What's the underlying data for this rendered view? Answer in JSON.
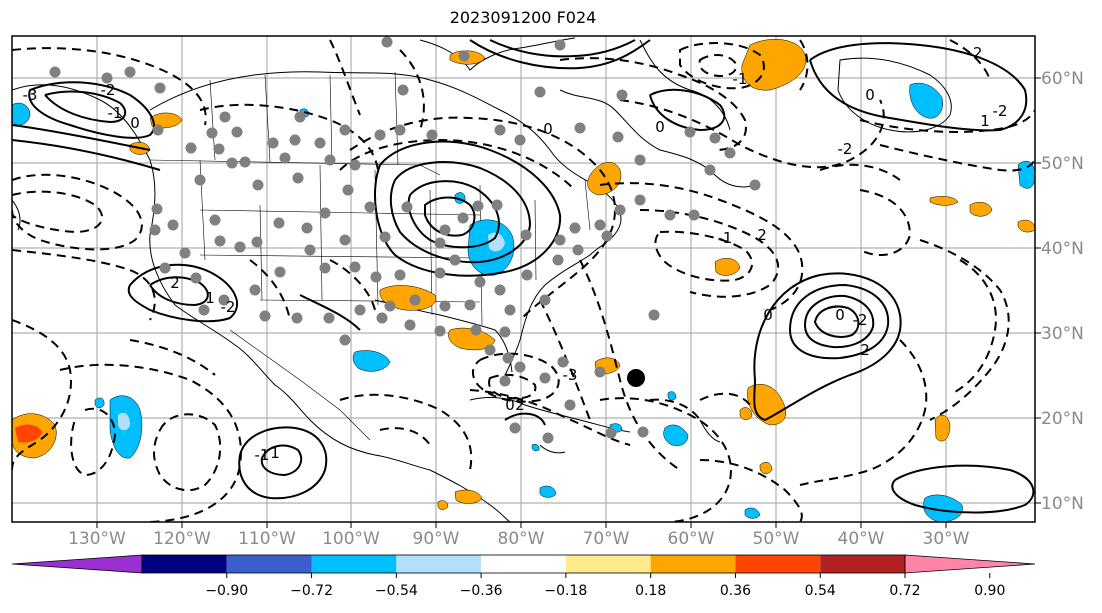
{
  "title": "2023091200 F024",
  "lon_labels": [
    "130°W",
    "120°W",
    "110°W",
    "100°W",
    "90°W",
    "80°W",
    "70°W",
    "60°W",
    "50°W",
    "40°W",
    "30°W"
  ],
  "lat_labels": [
    "60°N",
    "50°N",
    "40°N",
    "30°N",
    "20°N",
    "10°N"
  ],
  "colorbar": {
    "ticks": [
      "−0.90",
      "−0.72",
      "−0.54",
      "−0.36",
      "−0.18",
      "0.18",
      "0.36",
      "0.54",
      "0.72",
      "0.90"
    ],
    "colors": [
      "#9b30d2",
      "#000080",
      "#3a5fcd",
      "#00bfff",
      "#b0e0fb",
      "#ffffff",
      "#ffea8c",
      "#ffa500",
      "#ff4500",
      "#b22222",
      "#ff85a8"
    ]
  },
  "contour_labels": [
    "0",
    "-1",
    "-2",
    "-3",
    "2",
    "1",
    "-2",
    "0",
    "-1",
    "0",
    "-2",
    "1",
    "-2",
    "0",
    "-2",
    "2",
    "-1",
    "0",
    "2",
    "-2",
    "0",
    "-1",
    "1",
    "-3",
    "0",
    "2"
  ],
  "colors": {
    "land_line": "#000000",
    "grid": "#b0b0b0",
    "station_dot": "#808080",
    "marker": "#000000",
    "pos_fill": "#ffa500",
    "neg_fill": "#00bfff"
  }
}
